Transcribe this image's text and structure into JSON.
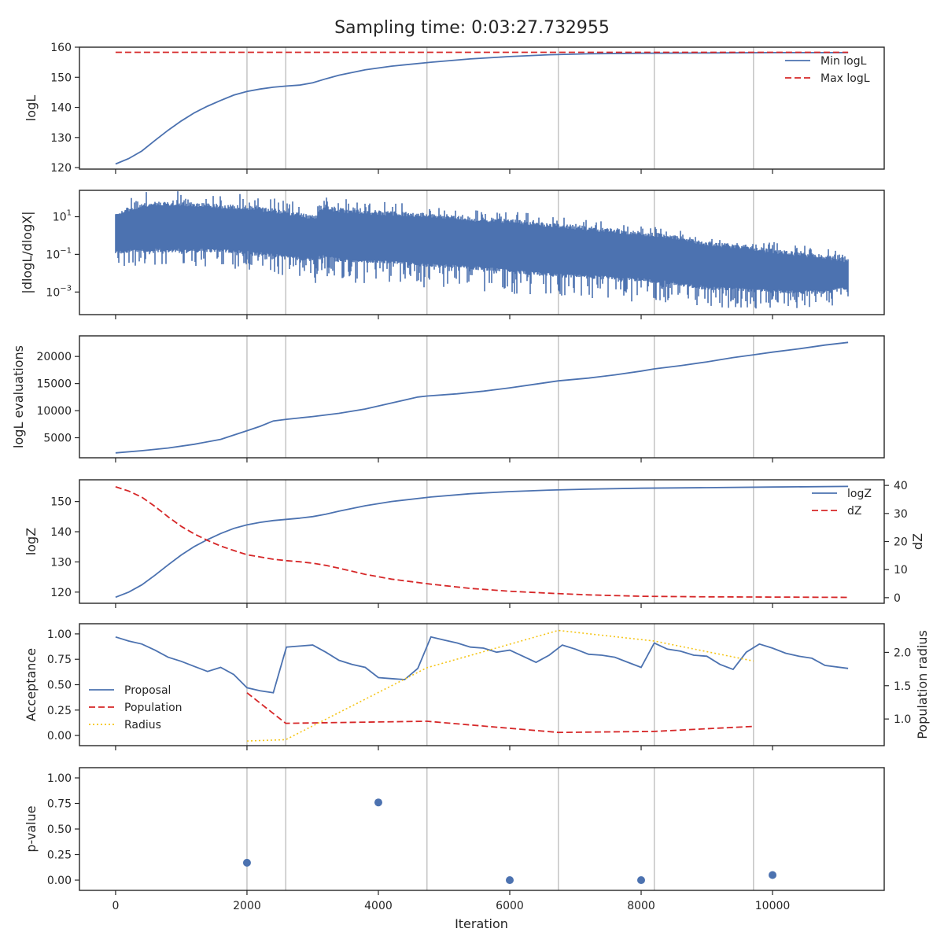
{
  "figure": {
    "title": "Sampling time: 0:03:27.732955",
    "xlabel": "Iteration",
    "x_ticks": [
      0,
      2000,
      4000,
      6000,
      8000,
      10000
    ],
    "x_lim": [
      -550,
      11700
    ],
    "vlines": [
      2000,
      2590,
      4740,
      6740,
      8200,
      9710
    ],
    "colors": {
      "blue": "#4c72b0",
      "red": "#d62728",
      "yellow": "#f5c518",
      "vline": "#c0c0c0"
    }
  },
  "chart_data": [
    {
      "id": "logl",
      "type": "line",
      "ylabel": "logL",
      "ylim": [
        119.5,
        160
      ],
      "y_ticks": [
        120,
        130,
        140,
        150,
        160
      ],
      "legend": {
        "placement": "upper-right"
      },
      "series": [
        {
          "name": "Min logL",
          "style": "solid",
          "color": "blue",
          "x": [
            0,
            200,
            400,
            600,
            800,
            1000,
            1200,
            1400,
            1600,
            1800,
            2000,
            2200,
            2400,
            2600,
            2800,
            3000,
            3200,
            3400,
            3800,
            4200,
            4800,
            5400,
            6000,
            6600,
            7200,
            8000,
            9000,
            10000,
            11150
          ],
          "y": [
            121.2,
            123,
            125.5,
            129,
            132.4,
            135.5,
            138.2,
            140.4,
            142.3,
            144.1,
            145.3,
            146.1,
            146.7,
            147.1,
            147.4,
            148.2,
            149.5,
            150.7,
            152.5,
            153.7,
            155,
            156.1,
            156.9,
            157.5,
            157.8,
            158,
            158.1,
            158.2,
            158.2
          ]
        },
        {
          "name": "Max logL",
          "style": "dashed",
          "color": "red",
          "x": [
            0,
            11150
          ],
          "y": [
            158.3,
            158.3
          ]
        }
      ]
    },
    {
      "id": "dlogl",
      "type": "line",
      "ylabel": "|dlogL/dlogX|",
      "scale": "log",
      "ylim_log10": [
        -4.2,
        2.4
      ],
      "y_ticks_log10": [
        1,
        -1,
        -3
      ],
      "envelope": {
        "x": [
          0,
          500,
          1000,
          1500,
          2000,
          2500,
          3000,
          3050,
          3100,
          3600,
          4200,
          4800,
          5400,
          6000,
          6600,
          7200,
          7800,
          8400,
          9000,
          9600,
          10200,
          10800,
          11150
        ],
        "upper": [
          1.3,
          1.8,
          1.8,
          1.7,
          1.6,
          1.4,
          1.1,
          1.1,
          1.6,
          1.4,
          1.3,
          1.2,
          1.0,
          0.9,
          0.7,
          0.5,
          0.3,
          0.1,
          -0.3,
          -0.5,
          -0.8,
          -1.0,
          -1.2
        ],
        "lower": [
          -1.0,
          -0.9,
          -0.9,
          -0.9,
          -1.0,
          -1.2,
          -1.4,
          -2.0,
          -1.2,
          -1.5,
          -1.5,
          -1.7,
          -1.8,
          -2.0,
          -2.2,
          -2.3,
          -2.4,
          -2.6,
          -2.9,
          -3.0,
          -3.1,
          -3.1,
          -2.9
        ],
        "min": [
          -2.0,
          -1.6,
          -1.7,
          -1.8,
          -1.9,
          -2.1,
          -2.4,
          -3.1,
          -2.2,
          -2.5,
          -2.6,
          -2.8,
          -3.0,
          -3.1,
          -3.2,
          -3.4,
          -3.5,
          -3.6,
          -3.8,
          -3.9,
          -3.9,
          -3.8,
          -3.6
        ],
        "max": [
          2.1,
          2.4,
          2.4,
          2.3,
          2.2,
          2.0,
          1.6,
          1.2,
          2.1,
          1.9,
          1.8,
          1.6,
          1.4,
          1.3,
          1.1,
          0.9,
          0.6,
          0.4,
          0.0,
          -0.2,
          -0.4,
          -0.6,
          -0.8
        ]
      }
    },
    {
      "id": "evals",
      "type": "line",
      "ylabel": "logL evaluations",
      "ylim": [
        1300,
        23800
      ],
      "y_ticks": [
        5000,
        10000,
        15000,
        20000
      ],
      "series": [
        {
          "name": "",
          "style": "solid",
          "color": "blue",
          "x": [
            0,
            400,
            800,
            1200,
            1600,
            1800,
            2000,
            2200,
            2400,
            2600,
            3000,
            3400,
            3800,
            4200,
            4600,
            4740,
            5200,
            5600,
            6000,
            6400,
            6740,
            7200,
            7600,
            8000,
            8200,
            8600,
            9000,
            9400,
            9710,
            10000,
            10400,
            10800,
            11150
          ],
          "y": [
            2200,
            2600,
            3100,
            3800,
            4700,
            5500,
            6300,
            7100,
            8100,
            8400,
            8900,
            9500,
            10300,
            11400,
            12500,
            12700,
            13100,
            13600,
            14200,
            14900,
            15500,
            16000,
            16600,
            17300,
            17700,
            18300,
            19000,
            19800,
            20300,
            20800,
            21400,
            22100,
            22600
          ]
        }
      ]
    },
    {
      "id": "logz",
      "type": "line",
      "ylabel": "logZ",
      "ylim": [
        116.3,
        157.2
      ],
      "y_ticks": [
        120,
        130,
        140,
        150
      ],
      "ylabel_right": "dZ",
      "ylim_right": [
        -2,
        42
      ],
      "y_ticks_right": [
        0,
        10,
        20,
        30,
        40
      ],
      "legend": {
        "placement": "upper-right"
      },
      "series": [
        {
          "name": "logZ",
          "style": "solid",
          "color": "blue",
          "axis": "left",
          "x": [
            0,
            200,
            400,
            600,
            800,
            1000,
            1200,
            1400,
            1600,
            1800,
            2000,
            2200,
            2400,
            2600,
            2800,
            3000,
            3200,
            3400,
            3800,
            4200,
            4800,
            5400,
            6000,
            6600,
            7200,
            8000,
            9000,
            10000,
            11150
          ],
          "y": [
            118.3,
            120,
            122.4,
            125.6,
            129,
            132.3,
            135.1,
            137.4,
            139.4,
            141.1,
            142.3,
            143.1,
            143.7,
            144.1,
            144.5,
            145,
            145.8,
            146.8,
            148.6,
            150,
            151.5,
            152.6,
            153.3,
            153.8,
            154.1,
            154.4,
            154.6,
            154.8,
            155
          ]
        },
        {
          "name": "dZ",
          "style": "dashed",
          "color": "red",
          "axis": "right",
          "x": [
            0,
            200,
            400,
            600,
            800,
            1000,
            1200,
            1400,
            1600,
            1800,
            2000,
            2200,
            2400,
            2600,
            2800,
            3000,
            3200,
            3400,
            3800,
            4200,
            4800,
            5400,
            6000,
            6600,
            7200,
            8000,
            9000,
            10000,
            11150
          ],
          "y": [
            39.5,
            38,
            35.8,
            32.5,
            28.8,
            25.4,
            22.7,
            20.4,
            18.4,
            16.8,
            15.3,
            14.5,
            13.7,
            13.2,
            12.8,
            12.3,
            11.5,
            10.5,
            8.3,
            6.6,
            4.8,
            3.3,
            2.3,
            1.6,
            1,
            0.5,
            0.3,
            0.2,
            0.1
          ]
        }
      ]
    },
    {
      "id": "acceptance",
      "type": "line",
      "ylabel": "Acceptance",
      "ylim": [
        -0.1,
        1.1
      ],
      "y_ticks": [
        0,
        0.25,
        0.5,
        0.75,
        1
      ],
      "y_tick_labels": [
        "0.00",
        "0.25",
        "0.50",
        "0.75",
        "1.00"
      ],
      "ylabel_right": "Population radius",
      "ylim_right": [
        0.6,
        2.43
      ],
      "y_ticks_right": [
        1,
        1.5,
        2
      ],
      "y_tick_labels_right": [
        "1.0",
        "1.5",
        "2.0"
      ],
      "legend": {
        "placement": "lower-left"
      },
      "series": [
        {
          "name": "Proposal",
          "style": "solid",
          "color": "blue",
          "axis": "left",
          "x": [
            0,
            200,
            400,
            600,
            800,
            1000,
            1200,
            1400,
            1600,
            1800,
            2000,
            2200,
            2400,
            2600,
            2800,
            3000,
            3200,
            3400,
            3600,
            3800,
            4000,
            4200,
            4400,
            4600,
            4800,
            5000,
            5200,
            5400,
            5600,
            5800,
            6000,
            6200,
            6400,
            6600,
            6800,
            7000,
            7200,
            7400,
            7600,
            7800,
            8000,
            8200,
            8400,
            8600,
            8800,
            9000,
            9200,
            9400,
            9600,
            9800,
            10000,
            10200,
            10400,
            10600,
            10800,
            11150
          ],
          "y": [
            0.97,
            0.93,
            0.9,
            0.84,
            0.77,
            0.73,
            0.68,
            0.63,
            0.67,
            0.6,
            0.47,
            0.44,
            0.42,
            0.87,
            0.88,
            0.89,
            0.82,
            0.74,
            0.7,
            0.67,
            0.57,
            0.56,
            0.55,
            0.66,
            0.97,
            0.94,
            0.91,
            0.87,
            0.86,
            0.82,
            0.84,
            0.78,
            0.72,
            0.79,
            0.89,
            0.85,
            0.8,
            0.79,
            0.77,
            0.72,
            0.67,
            0.91,
            0.85,
            0.83,
            0.79,
            0.78,
            0.7,
            0.65,
            0.82,
            0.9,
            0.86,
            0.81,
            0.78,
            0.76,
            0.69,
            0.66
          ]
        },
        {
          "name": "Population",
          "style": "dashed",
          "color": "red",
          "axis": "left",
          "x": [
            2000,
            2590,
            4740,
            6740,
            8200,
            9710
          ],
          "y": [
            0.42,
            0.12,
            0.14,
            0.03,
            0.04,
            0.09
          ]
        },
        {
          "name": "Radius",
          "style": "dotted",
          "color": "yellow",
          "axis": "right",
          "x": [
            2000,
            2590,
            4740,
            6740,
            8200,
            9710
          ],
          "y": [
            0.67,
            0.69,
            1.77,
            2.33,
            2.17,
            1.87
          ]
        }
      ]
    },
    {
      "id": "pvalue",
      "type": "scatter",
      "ylabel": "p-value",
      "ylim": [
        -0.1,
        1.1
      ],
      "y_ticks": [
        0,
        0.25,
        0.5,
        0.75,
        1
      ],
      "y_tick_labels": [
        "0.00",
        "0.25",
        "0.50",
        "0.75",
        "1.00"
      ],
      "series": [
        {
          "name": "",
          "color": "blue",
          "x": [
            2000,
            4000,
            6000,
            8000,
            10000
          ],
          "y": [
            0.17,
            0.76,
            0.0,
            0.0,
            0.05
          ]
        }
      ]
    }
  ]
}
